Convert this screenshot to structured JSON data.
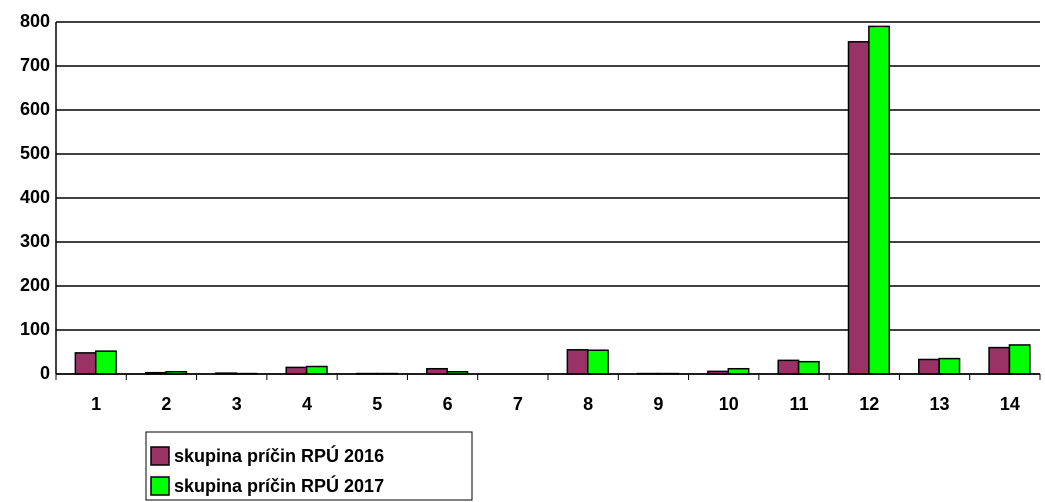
{
  "chart_data": {
    "type": "bar",
    "categories": [
      "1",
      "2",
      "3",
      "4",
      "5",
      "6",
      "7",
      "8",
      "9",
      "10",
      "11",
      "12",
      "13",
      "14"
    ],
    "series": [
      {
        "name": "skupina príčin RPÚ 2016",
        "color": "#993366",
        "values": [
          48,
          3,
          2,
          15,
          1,
          12,
          0,
          55,
          1,
          6,
          31,
          755,
          33,
          60
        ]
      },
      {
        "name": "skupina príčin RPÚ 2017",
        "color": "#00ff00",
        "values": [
          52,
          5,
          1,
          17,
          1,
          5,
          0,
          54,
          1,
          12,
          28,
          790,
          35,
          66
        ]
      }
    ],
    "ylim": [
      0,
      800
    ],
    "yticks": [
      0,
      100,
      200,
      300,
      400,
      500,
      600,
      700,
      800
    ],
    "grid": true
  }
}
